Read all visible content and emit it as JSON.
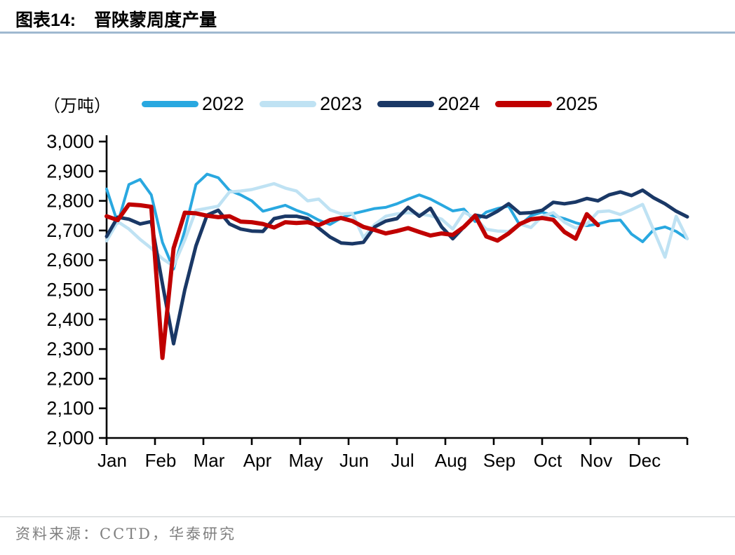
{
  "header": {
    "figure_label": "图表14:",
    "title": "晋陕蒙周度产量"
  },
  "unit_label": "（万吨）",
  "footer": {
    "source": "资料来源：CCTD，华泰研究"
  },
  "colors": {
    "title_rule": "#9FB9D0",
    "footer_rule": "#C7CBCE",
    "footer_text": "#7F7F7F",
    "axis": "#000000"
  },
  "chart_data": {
    "type": "line",
    "title": "晋陕蒙周度产量",
    "unit": "万吨",
    "ylim": [
      2000,
      3000
    ],
    "ytick_step": 100,
    "weeks_per_year": 52,
    "grid": false,
    "legend_position": "top",
    "months": [
      "Jan",
      "Feb",
      "Mar",
      "Apr",
      "May",
      "Jun",
      "Jul",
      "Aug",
      "Sep",
      "Oct",
      "Nov",
      "Dec"
    ],
    "series": [
      {
        "name": "2022",
        "color": "#29A8E0",
        "width": 4,
        "values": [
          2840,
          2725,
          2855,
          2872,
          2820,
          2660,
          2570,
          2700,
          2855,
          2890,
          2878,
          2835,
          2820,
          2800,
          2765,
          2775,
          2785,
          2768,
          2755,
          2735,
          2720,
          2742,
          2756,
          2765,
          2774,
          2778,
          2790,
          2806,
          2820,
          2806,
          2786,
          2766,
          2772,
          2730,
          2762,
          2774,
          2782,
          2718,
          2750,
          2762,
          2750,
          2740,
          2726,
          2716,
          2722,
          2732,
          2735,
          2688,
          2662,
          2703,
          2712,
          2697,
          2672
        ]
      },
      {
        "name": "2023",
        "color": "#BFE2F3",
        "width": 4.5,
        "values": [
          2665,
          2730,
          2705,
          2670,
          2640,
          2605,
          2580,
          2668,
          2768,
          2775,
          2782,
          2830,
          2833,
          2838,
          2848,
          2858,
          2843,
          2833,
          2800,
          2806,
          2770,
          2756,
          2758,
          2676,
          2720,
          2748,
          2756,
          2760,
          2756,
          2750,
          2738,
          2705,
          2762,
          2742,
          2704,
          2698,
          2697,
          2722,
          2710,
          2748,
          2760,
          2728,
          2708,
          2722,
          2763,
          2766,
          2754,
          2770,
          2788,
          2700,
          2610,
          2748,
          2672
        ]
      },
      {
        "name": "2024",
        "color": "#1A3866",
        "width": 5,
        "values": [
          2680,
          2745,
          2738,
          2722,
          2730,
          2520,
          2318,
          2500,
          2648,
          2752,
          2768,
          2722,
          2705,
          2698,
          2697,
          2740,
          2748,
          2748,
          2740,
          2708,
          2678,
          2658,
          2655,
          2660,
          2712,
          2732,
          2740,
          2778,
          2748,
          2775,
          2712,
          2672,
          2712,
          2752,
          2745,
          2765,
          2790,
          2758,
          2760,
          2768,
          2795,
          2790,
          2796,
          2808,
          2800,
          2820,
          2830,
          2818,
          2836,
          2810,
          2790,
          2765,
          2746
        ]
      },
      {
        "name": "2025",
        "color": "#C00000",
        "width": 6,
        "values": [
          2748,
          2735,
          2788,
          2785,
          2780,
          2270,
          2640,
          2760,
          2758,
          2750,
          2745,
          2748,
          2730,
          2728,
          2722,
          2710,
          2728,
          2725,
          2728,
          2718,
          2735,
          2742,
          2732,
          2712,
          2702,
          2690,
          2698,
          2708,
          2695,
          2683,
          2690,
          2685,
          2712,
          2750,
          2680,
          2666,
          2690,
          2722,
          2738,
          2742,
          2736,
          2695,
          2672,
          2755,
          2718
        ]
      }
    ]
  }
}
